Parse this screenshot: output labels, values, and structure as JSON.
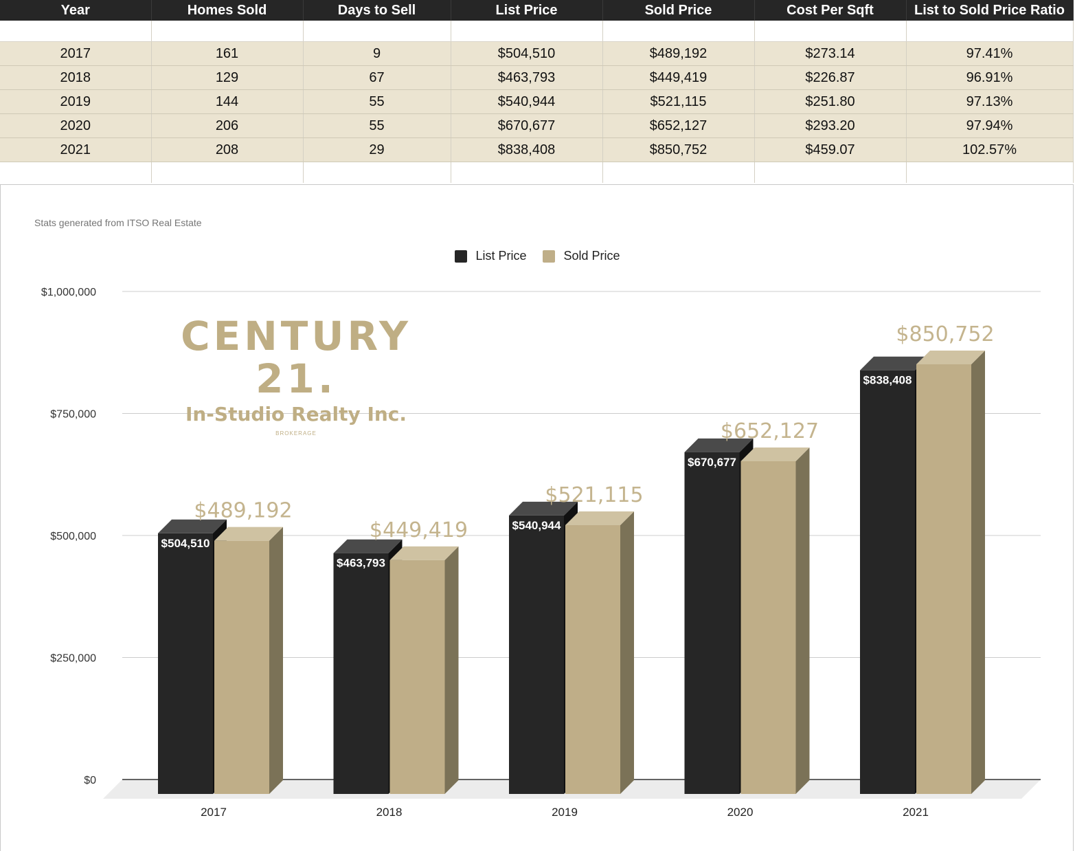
{
  "table": {
    "headers": [
      "Year",
      "Homes Sold",
      "Days to Sell",
      "List Price",
      "Sold Price",
      "Cost Per Sqft",
      "List to Sold Price Ratio"
    ],
    "rows": [
      [
        "2017",
        "161",
        "9",
        "$504,510",
        "$489,192",
        "$273.14",
        "97.41%"
      ],
      [
        "2018",
        "129",
        "67",
        "$463,793",
        "$449,419",
        "$226.87",
        "96.91%"
      ],
      [
        "2019",
        "144",
        "55",
        "$540,944",
        "$521,115",
        "$251.80",
        "97.13%"
      ],
      [
        "2020",
        "206",
        "55",
        "$670,677",
        "$652,127",
        "$293.20",
        "97.94%"
      ],
      [
        "2021",
        "208",
        "29",
        "$838,408",
        "$850,752",
        "$459.07",
        "102.57%"
      ]
    ]
  },
  "source_note": "Stats generated from ITSO Real Estate",
  "logo": {
    "main": "CENTURY 21.",
    "sub": "In-Studio Realty Inc.",
    "tiny": "BROKERAGE"
  },
  "colors": {
    "list_price": "#262626",
    "sold_price": "#bfae88",
    "header_bg": "#262626",
    "row_bg": "#ebe4d1"
  },
  "chart_data": {
    "type": "bar",
    "style": "3d-grouped-columns",
    "categories": [
      "2017",
      "2018",
      "2019",
      "2020",
      "2021"
    ],
    "series": [
      {
        "name": "List Price",
        "values": [
          504510,
          463793,
          540944,
          670677,
          838408
        ],
        "labels": [
          "$504,510",
          "$463,793",
          "$540,944",
          "$670,677",
          "$838,408"
        ]
      },
      {
        "name": "Sold Price",
        "values": [
          489192,
          449419,
          521115,
          652127,
          850752
        ],
        "labels": [
          "$489,192",
          "$449,419",
          "$521,115",
          "$652,127",
          "$850,752"
        ]
      }
    ],
    "yticks": [
      0,
      250000,
      500000,
      750000,
      1000000
    ],
    "ytick_labels": [
      "$0",
      "$250,000",
      "$500,000",
      "$750,000",
      "$1,000,000"
    ],
    "ylim": [
      0,
      1000000
    ],
    "grid": true,
    "legend_position": "top-center"
  }
}
